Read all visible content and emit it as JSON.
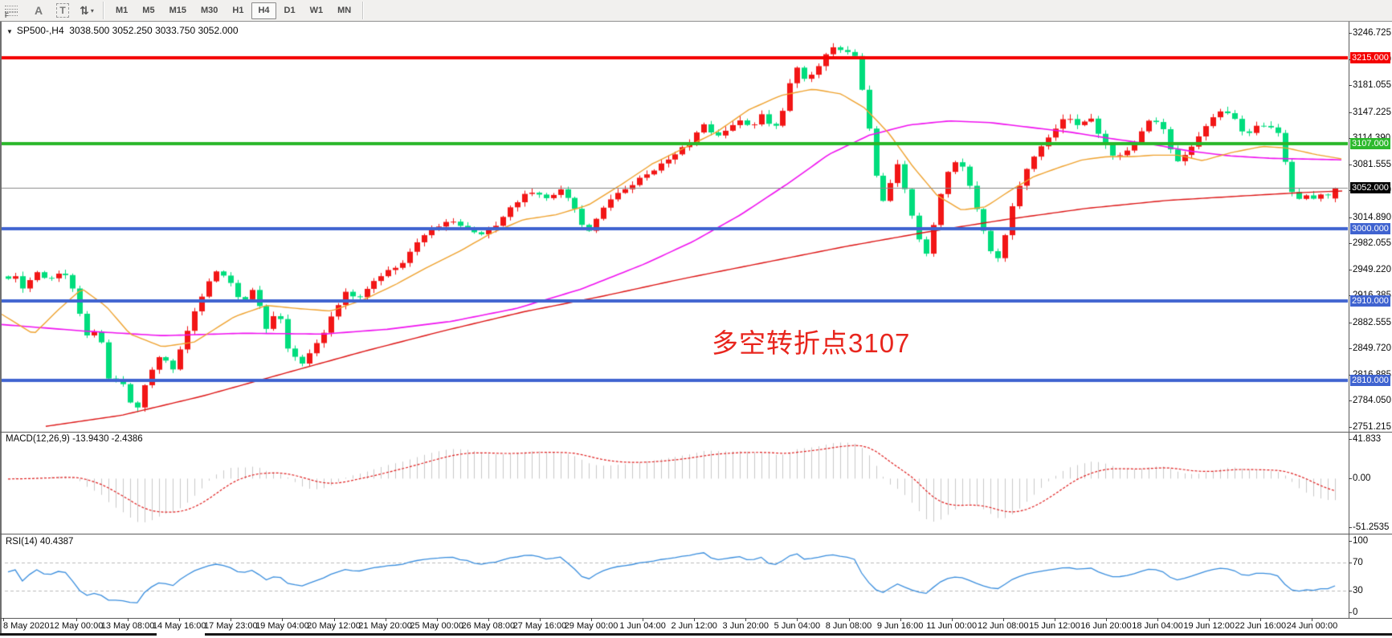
{
  "toolbar": {
    "grid_icon_sub": "F",
    "label_icon": "A",
    "textbox_icon": "T",
    "arrows_icon": "⇅",
    "dropdown_caret": "▾",
    "timeframes": [
      "M1",
      "M5",
      "M15",
      "M30",
      "H1",
      "H4",
      "D1",
      "W1",
      "MN"
    ],
    "active_timeframe": "H4"
  },
  "chart": {
    "caret": "▼",
    "symbol_period": "SP500-,H4",
    "ohlc": "3038.500 3052.250 3033.750 3052.000"
  },
  "annotation": {
    "text": "多空转折点3107"
  },
  "indicators": {
    "macd_label": "MACD(12,26,9) -13.9430 -2.4386",
    "rsi_label": "RSI(14) 40.4387"
  },
  "price_axis": {
    "ticks": [
      "3246.725",
      "3213.890",
      "3181.055",
      "3147.225",
      "3114.390",
      "3081.555",
      "3048.720",
      "3014.890",
      "2982.055",
      "2949.220",
      "2916.385",
      "2882.555",
      "2849.720",
      "2816.885",
      "2784.050",
      "2751.215"
    ],
    "levels": [
      {
        "label": "3215.000",
        "value": 3215,
        "bg": "#f40000",
        "fg": "#ffffff"
      },
      {
        "label": "3107.000",
        "value": 3107,
        "bg": "#2db92d",
        "fg": "#ffffff"
      },
      {
        "label": "3052.000",
        "value": 3052,
        "bg": "#000000",
        "fg": "#ffffff"
      },
      {
        "label": "3000.000",
        "value": 3000,
        "bg": "#3f63d0",
        "fg": "#ffffff"
      },
      {
        "label": "2910.000",
        "value": 2910,
        "bg": "#3f63d0",
        "fg": "#ffffff"
      },
      {
        "label": "2810.000",
        "value": 2810,
        "bg": "#3f63d0",
        "fg": "#ffffff"
      }
    ]
  },
  "macd_axis": [
    {
      "v": 41.833,
      "label": "41.833"
    },
    {
      "v": 0,
      "label": "0.00"
    },
    {
      "v": -51.2535,
      "label": "-51.2535"
    }
  ],
  "rsi_axis": [
    {
      "v": 100,
      "label": "100"
    },
    {
      "v": 70,
      "label": "70"
    },
    {
      "v": 30,
      "label": "30"
    },
    {
      "v": 0,
      "label": "0"
    }
  ],
  "date_axis": [
    "8 May 2020",
    "12 May 00:00",
    "13 May 08:00",
    "14 May 16:00",
    "17 May 23:00",
    "19 May 04:00",
    "20 May 12:00",
    "21 May 20:00",
    "25 May 00:00",
    "26 May 08:00",
    "27 May 16:00",
    "29 May 00:00",
    "1 Jun 04:00",
    "2 Jun 12:00",
    "3 Jun 20:00",
    "5 Jun 04:00",
    "8 Jun 08:00",
    "9 Jun 16:00",
    "11 Jun 00:00",
    "12 Jun 08:00",
    "15 Jun 12:00",
    "16 Jun 20:00",
    "18 Jun 04:00",
    "19 Jun 12:00",
    "22 Jun 16:00",
    "24 Jun 00:00"
  ],
  "chart_data": {
    "type": "candlestick",
    "symbol": "SP500-",
    "timeframe": "H4",
    "current_bar": {
      "open": 3038.5,
      "high": 3052.25,
      "low": 3033.75,
      "close": 3052.0
    },
    "y_axis": {
      "top_price": 3246.725,
      "bottom_price": 2751.215
    },
    "horizontal_levels": [
      {
        "price": 3215,
        "color": "#f40000",
        "width": 4
      },
      {
        "price": 3107,
        "color": "#28b628",
        "width": 4
      },
      {
        "price": 3052,
        "color": "#8a8a8a",
        "width": 1
      },
      {
        "price": 3000,
        "color": "#3f63d0",
        "width": 4
      },
      {
        "price": 2910,
        "color": "#3f63d0",
        "width": 4
      },
      {
        "price": 2810,
        "color": "#3f63d0",
        "width": 4
      }
    ],
    "n_candles": 186,
    "close_path": [
      [
        0,
        2932
      ],
      [
        14,
        2944
      ],
      [
        28,
        2922
      ],
      [
        42,
        2948
      ],
      [
        56,
        2936
      ],
      [
        70,
        2946
      ],
      [
        84,
        2940
      ],
      [
        95,
        2902
      ],
      [
        108,
        2860
      ],
      [
        120,
        2880
      ],
      [
        134,
        2806
      ],
      [
        148,
        2812
      ],
      [
        166,
        2768
      ],
      [
        182,
        2818
      ],
      [
        198,
        2842
      ],
      [
        214,
        2822
      ],
      [
        232,
        2876
      ],
      [
        252,
        2922
      ],
      [
        268,
        2950
      ],
      [
        284,
        2936
      ],
      [
        298,
        2906
      ],
      [
        314,
        2926
      ],
      [
        328,
        2874
      ],
      [
        344,
        2898
      ],
      [
        358,
        2844
      ],
      [
        374,
        2832
      ],
      [
        394,
        2858
      ],
      [
        414,
        2896
      ],
      [
        428,
        2920
      ],
      [
        444,
        2912
      ],
      [
        458,
        2930
      ],
      [
        478,
        2946
      ],
      [
        498,
        2956
      ],
      [
        518,
        2984
      ],
      [
        538,
        3000
      ],
      [
        558,
        3012
      ],
      [
        578,
        3002
      ],
      [
        598,
        2992
      ],
      [
        618,
        3008
      ],
      [
        638,
        3032
      ],
      [
        658,
        3048
      ],
      [
        678,
        3038
      ],
      [
        698,
        3052
      ],
      [
        714,
        3024
      ],
      [
        728,
        2994
      ],
      [
        744,
        3018
      ],
      [
        758,
        3038
      ],
      [
        778,
        3052
      ],
      [
        798,
        3066
      ],
      [
        818,
        3080
      ],
      [
        838,
        3092
      ],
      [
        858,
        3112
      ],
      [
        874,
        3132
      ],
      [
        888,
        3118
      ],
      [
        904,
        3124
      ],
      [
        918,
        3138
      ],
      [
        934,
        3128
      ],
      [
        948,
        3150
      ],
      [
        960,
        3120
      ],
      [
        974,
        3152
      ],
      [
        988,
        3208
      ],
      [
        1002,
        3186
      ],
      [
        1016,
        3204
      ],
      [
        1032,
        3230
      ],
      [
        1048,
        3224
      ],
      [
        1062,
        3218
      ],
      [
        1076,
        3150
      ],
      [
        1086,
        3080
      ],
      [
        1096,
        3032
      ],
      [
        1106,
        3056
      ],
      [
        1114,
        3086
      ],
      [
        1122,
        3058
      ],
      [
        1132,
        3022
      ],
      [
        1142,
        2988
      ],
      [
        1152,
        2968
      ],
      [
        1160,
        3006
      ],
      [
        1170,
        3048
      ],
      [
        1180,
        3080
      ],
      [
        1190,
        3088
      ],
      [
        1200,
        3070
      ],
      [
        1210,
        3038
      ],
      [
        1220,
        3006
      ],
      [
        1230,
        2976
      ],
      [
        1240,
        2962
      ],
      [
        1250,
        2996
      ],
      [
        1260,
        3036
      ],
      [
        1272,
        3068
      ],
      [
        1284,
        3088
      ],
      [
        1296,
        3106
      ],
      [
        1312,
        3128
      ],
      [
        1326,
        3142
      ],
      [
        1340,
        3128
      ],
      [
        1356,
        3140
      ],
      [
        1370,
        3112
      ],
      [
        1384,
        3090
      ],
      [
        1400,
        3098
      ],
      [
        1416,
        3116
      ],
      [
        1430,
        3140
      ],
      [
        1446,
        3124
      ],
      [
        1460,
        3084
      ],
      [
        1476,
        3098
      ],
      [
        1490,
        3116
      ],
      [
        1506,
        3138
      ],
      [
        1520,
        3148
      ],
      [
        1534,
        3140
      ],
      [
        1548,
        3114
      ],
      [
        1564,
        3132
      ],
      [
        1580,
        3128
      ],
      [
        1592,
        3116
      ],
      [
        1602,
        3058
      ],
      [
        1612,
        3034
      ],
      [
        1624,
        3042
      ],
      [
        1636,
        3038
      ],
      [
        1648,
        3046
      ],
      [
        1660,
        3040
      ],
      [
        1670,
        3052
      ]
    ],
    "ma_fast": [
      [
        0,
        2893
      ],
      [
        40,
        2868
      ],
      [
        70,
        2898
      ],
      [
        100,
        2925
      ],
      [
        130,
        2903
      ],
      [
        160,
        2868
      ],
      [
        200,
        2852
      ],
      [
        240,
        2858
      ],
      [
        290,
        2890
      ],
      [
        330,
        2904
      ],
      [
        370,
        2900
      ],
      [
        410,
        2897
      ],
      [
        450,
        2911
      ],
      [
        490,
        2930
      ],
      [
        530,
        2952
      ],
      [
        570,
        2972
      ],
      [
        610,
        2995
      ],
      [
        650,
        3012
      ],
      [
        690,
        3018
      ],
      [
        730,
        3030
      ],
      [
        770,
        3055
      ],
      [
        810,
        3082
      ],
      [
        850,
        3102
      ],
      [
        890,
        3122
      ],
      [
        930,
        3150
      ],
      [
        970,
        3168
      ],
      [
        1010,
        3176
      ],
      [
        1045,
        3170
      ],
      [
        1075,
        3152
      ],
      [
        1105,
        3120
      ],
      [
        1135,
        3078
      ],
      [
        1165,
        3042
      ],
      [
        1195,
        3024
      ],
      [
        1225,
        3028
      ],
      [
        1255,
        3048
      ],
      [
        1285,
        3066
      ],
      [
        1315,
        3077
      ],
      [
        1345,
        3087
      ],
      [
        1375,
        3091
      ],
      [
        1405,
        3091
      ],
      [
        1435,
        3093
      ],
      [
        1465,
        3093
      ],
      [
        1495,
        3086
      ],
      [
        1530,
        3096
      ],
      [
        1570,
        3104
      ],
      [
        1600,
        3102
      ],
      [
        1635,
        3094
      ],
      [
        1670,
        3088
      ]
    ],
    "ma_mid": [
      [
        0,
        2880
      ],
      [
        100,
        2872
      ],
      [
        200,
        2866
      ],
      [
        300,
        2869
      ],
      [
        400,
        2868
      ],
      [
        480,
        2874
      ],
      [
        560,
        2884
      ],
      [
        640,
        2900
      ],
      [
        720,
        2924
      ],
      [
        800,
        2956
      ],
      [
        860,
        2984
      ],
      [
        920,
        3018
      ],
      [
        980,
        3058
      ],
      [
        1030,
        3094
      ],
      [
        1080,
        3118
      ],
      [
        1130,
        3131
      ],
      [
        1180,
        3136
      ],
      [
        1230,
        3134
      ],
      [
        1280,
        3128
      ],
      [
        1330,
        3122
      ],
      [
        1380,
        3114
      ],
      [
        1430,
        3107
      ],
      [
        1480,
        3098
      ],
      [
        1530,
        3092
      ],
      [
        1580,
        3089
      ],
      [
        1630,
        3088
      ],
      [
        1670,
        3087
      ]
    ],
    "ma_slow": [
      [
        55,
        2752
      ],
      [
        150,
        2766
      ],
      [
        250,
        2790
      ],
      [
        350,
        2818
      ],
      [
        450,
        2846
      ],
      [
        550,
        2872
      ],
      [
        650,
        2896
      ],
      [
        750,
        2916
      ],
      [
        850,
        2938
      ],
      [
        950,
        2958
      ],
      [
        1050,
        2978
      ],
      [
        1150,
        2996
      ],
      [
        1250,
        3012
      ],
      [
        1350,
        3026
      ],
      [
        1450,
        3036
      ],
      [
        1550,
        3042
      ],
      [
        1620,
        3046
      ],
      [
        1670,
        3048
      ]
    ],
    "macd": {
      "fast": 12,
      "slow": 26,
      "signal": 9,
      "value": -13.943,
      "signal_value": -2.4386,
      "axis_max": 41.833,
      "axis_min": -51.2535
    },
    "rsi": {
      "period": 14,
      "value": 40.4387,
      "levels": [
        70,
        30
      ]
    },
    "colors": {
      "up": "#f21616",
      "down": "#00dd7d",
      "ma_fast": "#efa22e",
      "ma_mid": "#f012f0",
      "ma_slow": "#dd1414",
      "macd_hist": "#c9c9c9",
      "macd_signal": "#e02020",
      "rsi_line": "#3a8ede",
      "rsi_level": "#bbbbbb",
      "annotation": "#e8251d"
    }
  }
}
